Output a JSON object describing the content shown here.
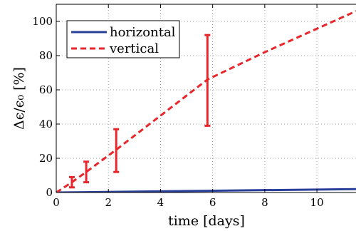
{
  "chart_data": {
    "type": "line",
    "xlabel": "time [days]",
    "ylabel": "Δϵ/ϵ₀ [%]",
    "xlim": [
      0,
      11.5
    ],
    "ylim": [
      0,
      110
    ],
    "xticks": [
      0,
      2,
      4,
      6,
      8,
      10
    ],
    "yticks": [
      0,
      20,
      40,
      60,
      80,
      100
    ],
    "x_tick_labels": [
      "0",
      "2",
      "4",
      "6",
      "8",
      "10"
    ],
    "y_tick_labels": [
      "0",
      "20",
      "40",
      "60",
      "80",
      "100"
    ],
    "grid": true,
    "legend_position": "top-left",
    "series": [
      {
        "name": "horizontal",
        "color": "#2a3f9a",
        "style": "solid",
        "x": [
          0,
          5.8,
          11.5
        ],
        "y": [
          0,
          1,
          2
        ]
      },
      {
        "name": "vertical",
        "color": "#e8262c",
        "style": "dashed",
        "x": [
          0,
          0.6,
          1.15,
          2.3,
          5.8,
          8,
          11.5
        ],
        "y": [
          0,
          6,
          12,
          25,
          66,
          82,
          106
        ]
      }
    ],
    "error_bars": {
      "series": "vertical",
      "color": "#e8262c",
      "points": [
        {
          "x": 0.6,
          "low": 3,
          "high": 9
        },
        {
          "x": 1.15,
          "low": 6,
          "high": 18
        },
        {
          "x": 2.3,
          "low": 12,
          "high": 37
        },
        {
          "x": 5.8,
          "low": 39,
          "high": 92
        }
      ]
    }
  }
}
